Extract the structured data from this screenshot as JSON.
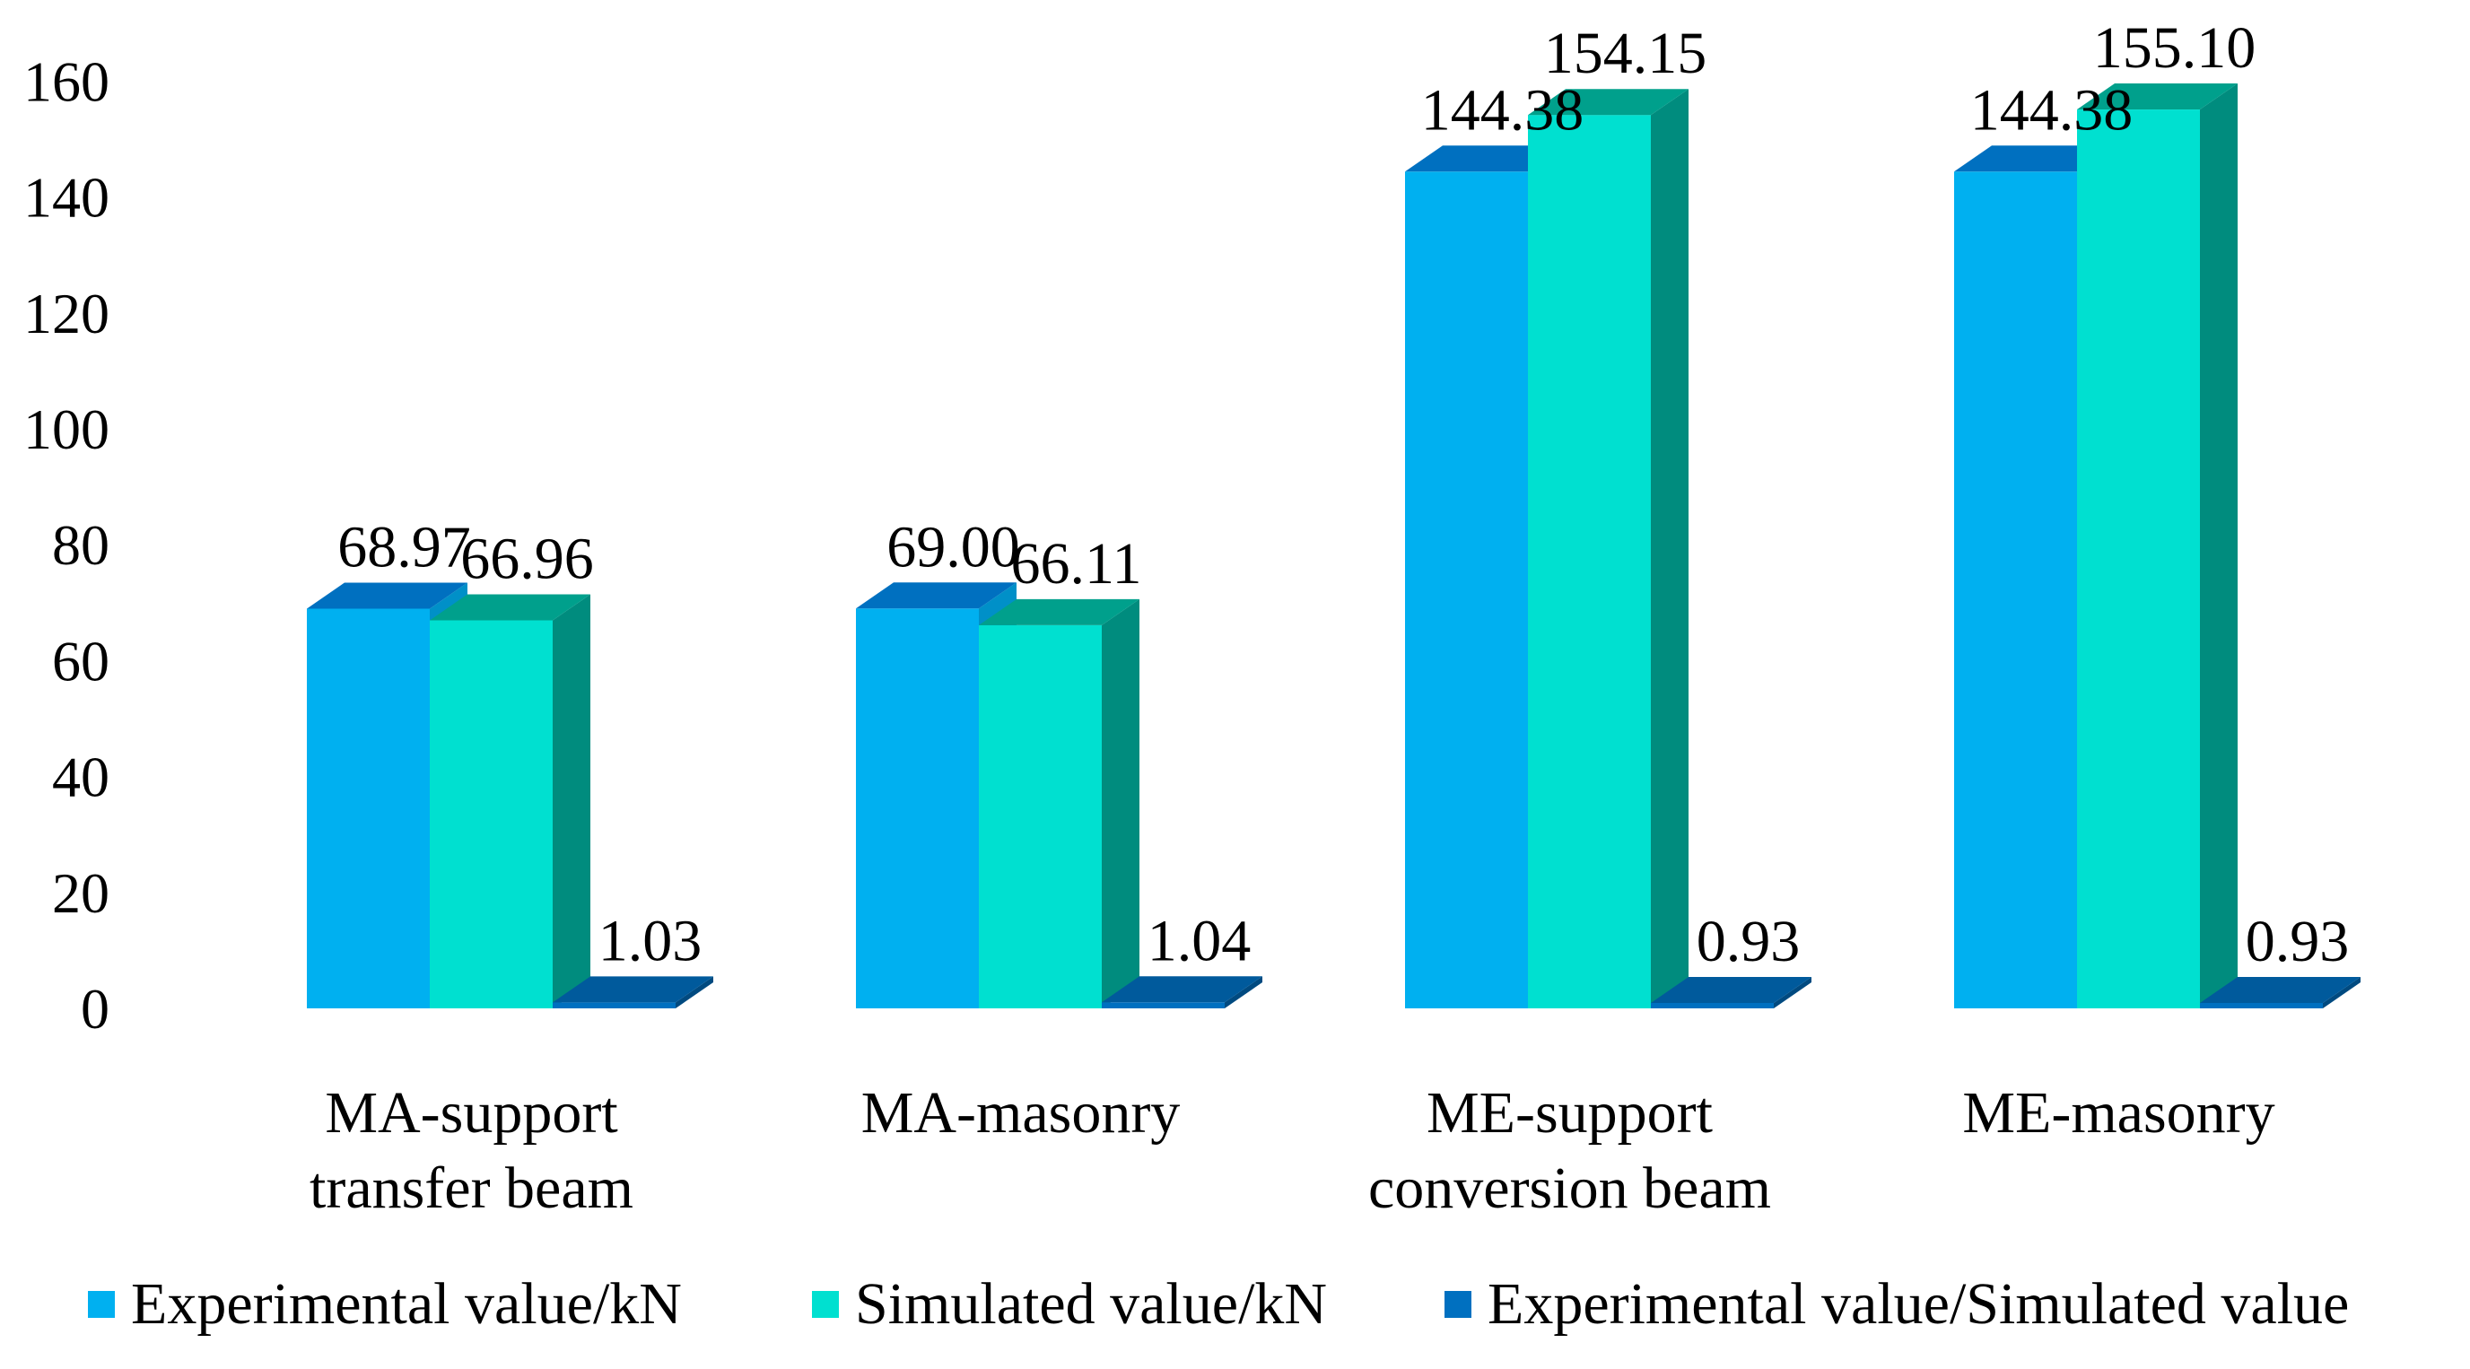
{
  "chart_data": {
    "type": "bar",
    "style": "3d-clustered",
    "title": "",
    "xlabel": "",
    "ylabel": "",
    "ylim": [
      0,
      160
    ],
    "yticks": [
      0,
      20,
      40,
      60,
      80,
      100,
      120,
      140,
      160
    ],
    "grid": false,
    "legend_position": "bottom",
    "categories": [
      [
        "MA-support",
        "transfer beam"
      ],
      [
        "MA-masonry"
      ],
      [
        "ME-support",
        "conversion beam"
      ],
      [
        "ME-masonry"
      ]
    ],
    "series": [
      {
        "name": "Experimental value/kN",
        "values": [
          68.97,
          69.0,
          144.38,
          144.38
        ],
        "labels": [
          "68.97",
          "69.00",
          "144.38",
          "144.38"
        ],
        "color": "#00B0F0",
        "top_color": "#0070C0",
        "side_color": "#0090C8"
      },
      {
        "name": "Simulated value/kN",
        "values": [
          66.96,
          66.11,
          154.15,
          155.1
        ],
        "labels": [
          "66.96",
          "66.11",
          "154.15",
          "155.10"
        ],
        "color": "#00E0D0",
        "top_color": "#00A08C",
        "side_color": "#008C7E"
      },
      {
        "name": "Experimental value/Simulated value",
        "values": [
          1.03,
          1.04,
          0.93,
          0.93
        ],
        "labels": [
          "1.03",
          "1.04",
          "0.93",
          "0.93"
        ],
        "color": "#0070C0",
        "top_color": "#005A9C",
        "side_color": "#004A80"
      }
    ]
  }
}
